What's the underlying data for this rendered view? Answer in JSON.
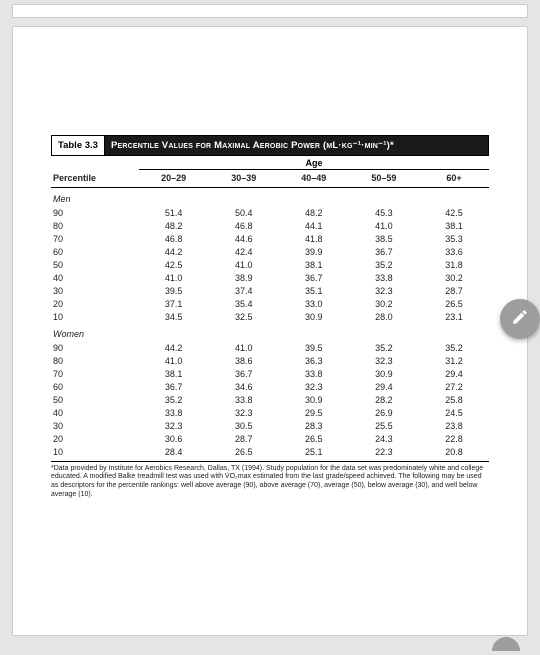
{
  "table_label": "Table 3.3",
  "table_title": "Percentile Values for Maximal Aerobic Power (mL·kg⁻¹·min⁻¹)*",
  "age_header": "Age",
  "columns": [
    "Percentile",
    "20–29",
    "30–39",
    "40–49",
    "50–59",
    "60+"
  ],
  "sections": [
    {
      "name": "Men",
      "rows": [
        [
          "90",
          "51.4",
          "50.4",
          "48.2",
          "45.3",
          "42.5"
        ],
        [
          "80",
          "48.2",
          "46.8",
          "44.1",
          "41.0",
          "38.1"
        ],
        [
          "70",
          "46.8",
          "44.6",
          "41.8",
          "38.5",
          "35.3"
        ],
        [
          "60",
          "44.2",
          "42.4",
          "39.9",
          "36.7",
          "33.6"
        ],
        [
          "50",
          "42.5",
          "41.0",
          "38.1",
          "35.2",
          "31.8"
        ],
        [
          "40",
          "41.0",
          "38.9",
          "36.7",
          "33.8",
          "30.2"
        ],
        [
          "30",
          "39.5",
          "37.4",
          "35.1",
          "32.3",
          "28.7"
        ],
        [
          "20",
          "37.1",
          "35.4",
          "33.0",
          "30.2",
          "26.5"
        ],
        [
          "10",
          "34.5",
          "32.5",
          "30.9",
          "28.0",
          "23.1"
        ]
      ]
    },
    {
      "name": "Women",
      "rows": [
        [
          "90",
          "44.2",
          "41.0",
          "39.5",
          "35.2",
          "35.2"
        ],
        [
          "80",
          "41.0",
          "38.6",
          "36.3",
          "32.3",
          "31.2"
        ],
        [
          "70",
          "38.1",
          "36.7",
          "33.8",
          "30.9",
          "29.4"
        ],
        [
          "60",
          "36.7",
          "34.6",
          "32.3",
          "29.4",
          "27.2"
        ],
        [
          "50",
          "35.2",
          "33.8",
          "30.9",
          "28.2",
          "25.8"
        ],
        [
          "40",
          "33.8",
          "32.3",
          "29.5",
          "26.9",
          "24.5"
        ],
        [
          "30",
          "32.3",
          "30.5",
          "28.3",
          "25.5",
          "23.8"
        ],
        [
          "20",
          "30.6",
          "28.7",
          "26.5",
          "24.3",
          "22.8"
        ],
        [
          "10",
          "28.4",
          "26.5",
          "25.1",
          "22.3",
          "20.8"
        ]
      ]
    }
  ],
  "footnote": "*Data provided by Institute for Aerobics Research, Dallas, TX (1994). Study population for the data set was predominately white and college educated. A modified Balke treadmill test was used with V̇O₂max estimated from the last grade/speed achieved. The following may be used as descriptors for the percentile rankings: well above average (90), above average (70), average (50), below average (30), and well below average (10).",
  "column_widths": [
    "20%",
    "16%",
    "16%",
    "16%",
    "16%",
    "16%"
  ],
  "colors": {
    "page_bg": "#ffffff",
    "body_bg": "#e5e5e5",
    "title_bg": "#1a1a1a",
    "title_fg": "#ffffff",
    "fab_bg": "#9d9d9d"
  }
}
